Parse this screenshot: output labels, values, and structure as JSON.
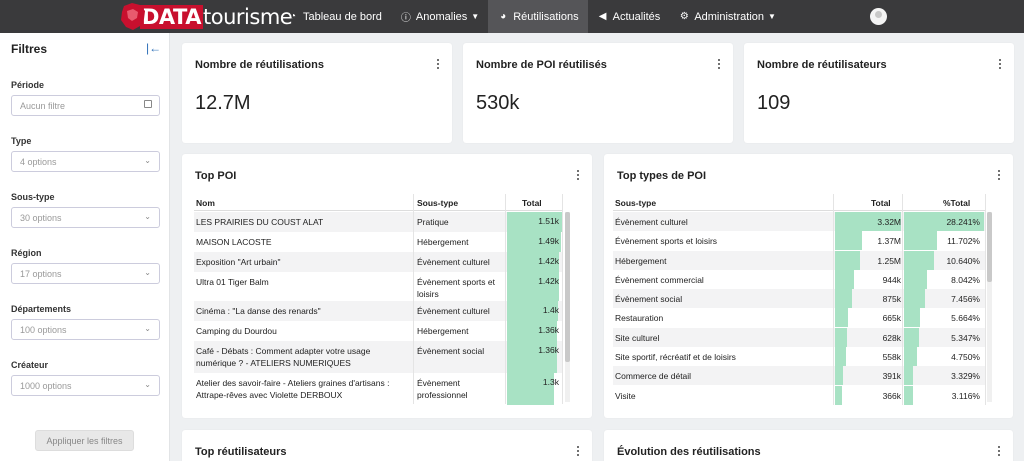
{
  "navbar": {
    "logo": "DATAtourisme",
    "items": [
      {
        "label": "Tableau de bord",
        "icon": "dashboard-icon",
        "caret": false,
        "active": false
      },
      {
        "label": "Anomalies",
        "icon": "info-icon",
        "caret": true,
        "active": false
      },
      {
        "label": "Réutilisations",
        "icon": "pie-chart-icon",
        "caret": false,
        "active": true
      },
      {
        "label": "Actualités",
        "icon": "megaphone-icon",
        "caret": false,
        "active": false
      },
      {
        "label": "Administration",
        "icon": "gears-icon",
        "caret": true,
        "active": false
      }
    ]
  },
  "sidebar": {
    "title": "Filtres",
    "filters": [
      {
        "label": "Période",
        "placeholder": "Aucun filtre",
        "type": "date"
      },
      {
        "label": "Type",
        "placeholder": "4 options",
        "type": "select"
      },
      {
        "label": "Sous-type",
        "placeholder": "30 options",
        "type": "select"
      },
      {
        "label": "Région",
        "placeholder": "17 options",
        "type": "select"
      },
      {
        "label": "Départements",
        "placeholder": "100 options",
        "type": "select"
      },
      {
        "label": "Créateur",
        "placeholder": "1000 options",
        "type": "select"
      }
    ],
    "apply_label": "Appliquer les filtres"
  },
  "kpis": [
    {
      "title": "Nombre de réutilisations",
      "value": "12.7M"
    },
    {
      "title": "Nombre de POI réutilisés",
      "value": "530k"
    },
    {
      "title": "Nombre de réutilisateurs",
      "value": "109"
    }
  ],
  "top_poi": {
    "title": "Top POI",
    "columns": [
      "Nom",
      "Sous-type",
      "Total"
    ],
    "rows": [
      {
        "nom": "LES PRAIRIES DU COUST ALAT",
        "sous_type": "Pratique",
        "total": "1.51k",
        "fraction": 1.0
      },
      {
        "nom": "MAISON LACOSTE",
        "sous_type": "Hébergement",
        "total": "1.49k",
        "fraction": 0.987
      },
      {
        "nom": "Exposition \"Art urbain\"",
        "sous_type": "Évènement culturel",
        "total": "1.42k",
        "fraction": 0.94
      },
      {
        "nom": "Ultra 01 Tiger Balm",
        "sous_type": "Évènement sports et loisirs",
        "total": "1.42k",
        "fraction": 0.94
      },
      {
        "nom": "Cinéma : \"La danse des renards\"",
        "sous_type": "Évènement culturel",
        "total": "1.4k",
        "fraction": 0.927
      },
      {
        "nom": "Camping du Dourdou",
        "sous_type": "Hébergement",
        "total": "1.36k",
        "fraction": 0.9
      },
      {
        "nom": "Café - Débats : Comment adapter votre usage numérique ? - ATELIERS NUMERIQUES",
        "sous_type": "Évènement social",
        "total": "1.36k",
        "fraction": 0.9
      },
      {
        "nom": "Atelier des savoir-faire - Ateliers graines d'artisans : Attrape-rêves avec Violette DERBOUX",
        "sous_type": "Évènement professionnel",
        "total": "1.3k",
        "fraction": 0.86
      }
    ]
  },
  "top_types": {
    "title": "Top types de POI",
    "columns": [
      "Sous-type",
      "Total",
      "%Total"
    ],
    "rows": [
      {
        "sous_type": "Évènement culturel",
        "total": "3.32M",
        "pct": "28.241%",
        "fraction": 1.0
      },
      {
        "sous_type": "Évènement sports et loisirs",
        "total": "1.37M",
        "pct": "11.702%",
        "fraction": 0.414
      },
      {
        "sous_type": "Hébergement",
        "total": "1.25M",
        "pct": "10.640%",
        "fraction": 0.377
      },
      {
        "sous_type": "Évènement commercial",
        "total": "944k",
        "pct": "8.042%",
        "fraction": 0.285
      },
      {
        "sous_type": "Évènement social",
        "total": "875k",
        "pct": "7.456%",
        "fraction": 0.264
      },
      {
        "sous_type": "Restauration",
        "total": "665k",
        "pct": "5.664%",
        "fraction": 0.2
      },
      {
        "sous_type": "Site culturel",
        "total": "628k",
        "pct": "5.347%",
        "fraction": 0.189
      },
      {
        "sous_type": "Site sportif, récréatif et de loisirs",
        "total": "558k",
        "pct": "4.750%",
        "fraction": 0.168
      },
      {
        "sous_type": "Commerce de détail",
        "total": "391k",
        "pct": "3.329%",
        "fraction": 0.118
      },
      {
        "sous_type": "Visite",
        "total": "366k",
        "pct": "3.116%",
        "fraction": 0.11
      }
    ]
  },
  "bottom_cards": [
    {
      "title": "Top réutilisateurs"
    },
    {
      "title": "Évolution des réutilisations"
    }
  ],
  "colors": {
    "navbar": "#3a3a3c",
    "accent": "#2d6fb7",
    "bar": "#a8e2c4",
    "brand": "#c8102e"
  }
}
